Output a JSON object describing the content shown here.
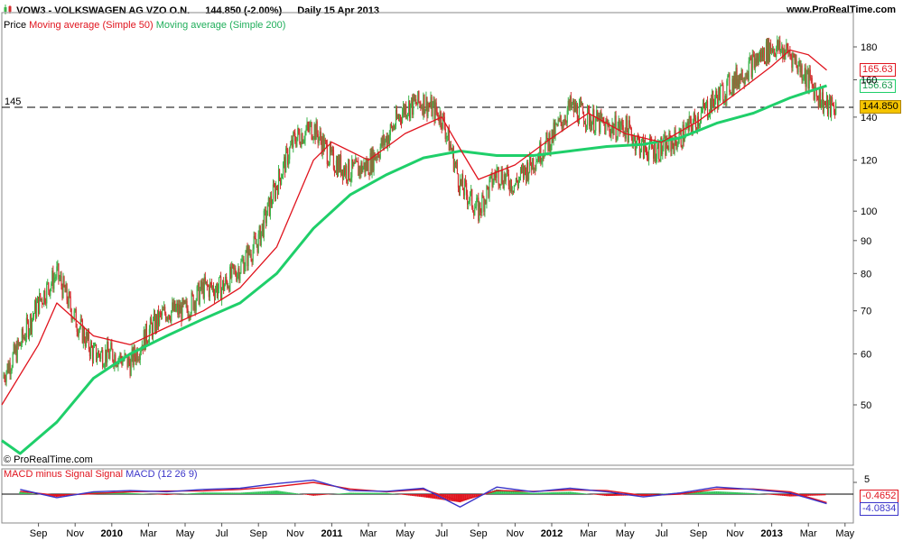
{
  "header": {
    "instrument": "VOW3 - VOLKSWAGEN AG VZO O.N.",
    "price_change": "144.850 (-2.00%)",
    "period": "Daily  15 Apr 2013",
    "website": "www.ProRealTime.com"
  },
  "legend": {
    "price": "Price",
    "ma50": "Moving average (Simple 50)",
    "ma200": "Moving average (Simple 200)"
  },
  "credit": "© ProRealTime.com",
  "macd_legend": {
    "hist": "MACD minus Signal Signal",
    "macd": "MACD (12 26 9)"
  },
  "price_boxes": {
    "ma50": "165.63",
    "ma200": "156.63",
    "last": "144.850"
  },
  "macd_boxes": {
    "five": "5",
    "hist": "-0.4652",
    "macd": "-4.0834"
  },
  "colors": {
    "up_candle": "#3cb44b",
    "down_candle": "#d32f2f",
    "ma50": "#e0141e",
    "ma200": "#1fcf6a",
    "macd_line": "#3b35c9",
    "signal_line": "#e0141e",
    "hist": "#33c35a"
  },
  "chart_data": [
    {
      "type": "line",
      "title": "VOW3 - VOLKSWAGEN AG VZO O.N.",
      "y_scale": "log",
      "ylim": [
        40,
        190
      ],
      "y_ticks": [
        50,
        60,
        70,
        80,
        90,
        100,
        120,
        140,
        160,
        180
      ],
      "x_tick_labels": [
        "Sep",
        "Nov",
        "2010",
        "Mar",
        "May",
        "Jul",
        "Sep",
        "Nov",
        "2011",
        "Mar",
        "May",
        "Jul",
        "Sep",
        "Nov",
        "2012",
        "Mar",
        "May",
        "Jul",
        "Sep",
        "Nov",
        "2013",
        "Mar",
        "May"
      ],
      "reference_line": {
        "label": "145",
        "value": 145,
        "style": "dashed"
      },
      "series": [
        {
          "name": "Price",
          "kind": "candlestick",
          "dates": [
            "2009-07",
            "2009-08",
            "2009-09",
            "2009-10",
            "2009-11",
            "2009-12",
            "2010-01",
            "2010-02",
            "2010-03",
            "2010-04",
            "2010-05",
            "2010-06",
            "2010-07",
            "2010-08",
            "2010-09",
            "2010-10",
            "2010-11",
            "2010-12",
            "2011-01",
            "2011-02",
            "2011-03",
            "2011-04",
            "2011-05",
            "2011-06",
            "2011-07",
            "2011-08",
            "2011-09",
            "2011-10",
            "2011-11",
            "2011-12",
            "2012-01",
            "2012-02",
            "2012-03",
            "2012-04",
            "2012-05",
            "2012-06",
            "2012-07",
            "2012-08",
            "2012-09",
            "2012-10",
            "2012-11",
            "2012-12",
            "2013-01",
            "2013-02",
            "2013-03",
            "2013-04"
          ],
          "values": [
            55,
            62,
            72,
            80,
            68,
            60,
            60,
            58,
            65,
            70,
            70,
            76,
            76,
            82,
            90,
            110,
            130,
            135,
            120,
            115,
            118,
            130,
            145,
            148,
            140,
            110,
            100,
            115,
            110,
            120,
            130,
            145,
            140,
            135,
            135,
            125,
            125,
            130,
            140,
            150,
            160,
            170,
            180,
            176,
            160,
            145
          ]
        },
        {
          "name": "Moving average (Simple 50)",
          "dates": [
            "2009-07",
            "2009-09",
            "2009-10",
            "2009-12",
            "2010-02",
            "2010-04",
            "2010-06",
            "2010-08",
            "2010-10",
            "2010-12",
            "2011-01",
            "2011-03",
            "2011-05",
            "2011-07",
            "2011-08",
            "2011-09",
            "2011-11",
            "2012-01",
            "2012-03",
            "2012-05",
            "2012-07",
            "2012-09",
            "2012-11",
            "2013-01",
            "2013-02",
            "2013-03",
            "2013-04"
          ],
          "values": [
            50,
            62,
            72,
            64,
            62,
            66,
            70,
            76,
            88,
            120,
            128,
            120,
            132,
            140,
            125,
            112,
            118,
            130,
            142,
            132,
            128,
            138,
            152,
            168,
            178,
            175,
            165.63
          ]
        },
        {
          "name": "Moving average (Simple 200)",
          "dates": [
            "2009-07",
            "2009-08",
            "2009-10",
            "2009-12",
            "2010-02",
            "2010-04",
            "2010-06",
            "2010-08",
            "2010-10",
            "2010-12",
            "2011-02",
            "2011-04",
            "2011-06",
            "2011-08",
            "2011-10",
            "2011-12",
            "2012-02",
            "2012-04",
            "2012-06",
            "2012-08",
            "2012-10",
            "2012-12",
            "2013-02",
            "2013-04"
          ],
          "values": [
            44,
            42,
            47,
            55,
            60,
            64,
            68,
            72,
            80,
            94,
            106,
            114,
            121,
            124,
            122,
            122,
            124,
            126,
            127,
            130,
            137,
            142,
            150,
            156.63
          ]
        }
      ]
    },
    {
      "type": "line",
      "title": "MACD (12 26 9)",
      "series": [
        {
          "name": "MACD minus Signal Signal",
          "kind": "histogram",
          "dates": [
            "2009-08",
            "2009-10",
            "2009-12",
            "2010-02",
            "2010-04",
            "2010-06",
            "2010-08",
            "2010-10",
            "2010-12",
            "2011-02",
            "2011-04",
            "2011-06",
            "2011-08",
            "2011-10",
            "2011-12",
            "2012-02",
            "2012-04",
            "2012-06",
            "2012-08",
            "2012-10",
            "2012-12",
            "2013-02",
            "2013-04"
          ],
          "values": [
            1.0,
            -1.2,
            0.9,
            0.5,
            -0.4,
            0.7,
            0.6,
            1.5,
            -0.7,
            0.6,
            0.5,
            -1.3,
            -3.5,
            2.0,
            0.5,
            1.0,
            -0.8,
            -0.5,
            0.7,
            1.2,
            0.4,
            -1.0,
            -0.4652
          ]
        },
        {
          "name": "MACD (12 26 9)",
          "dates": [
            "2009-08",
            "2009-10",
            "2009-12",
            "2010-02",
            "2010-04",
            "2010-06",
            "2010-08",
            "2010-10",
            "2010-12",
            "2011-02",
            "2011-04",
            "2011-06",
            "2011-08",
            "2011-10",
            "2011-12",
            "2012-02",
            "2012-04",
            "2012-06",
            "2012-08",
            "2012-10",
            "2012-12",
            "2013-02",
            "2013-04"
          ],
          "values": [
            2.0,
            -1.5,
            1.0,
            1.5,
            1.0,
            2.0,
            2.5,
            4.5,
            6.0,
            1.5,
            1.2,
            2.5,
            -5.5,
            3.0,
            1.0,
            2.5,
            1.0,
            -1.2,
            0.5,
            3.0,
            2.0,
            0.5,
            -4.0834
          ]
        },
        {
          "name": "Signal",
          "dates": [
            "2009-08",
            "2009-10",
            "2009-12",
            "2010-02",
            "2010-04",
            "2010-06",
            "2010-08",
            "2010-10",
            "2010-12",
            "2011-02",
            "2011-04",
            "2011-06",
            "2011-08",
            "2011-10",
            "2011-12",
            "2012-02",
            "2012-04",
            "2012-06",
            "2012-08",
            "2012-10",
            "2012-12",
            "2013-02",
            "2013-04"
          ],
          "values": [
            1.2,
            -0.5,
            0.2,
            1.0,
            1.3,
            1.4,
            2.0,
            3.2,
            5.0,
            2.2,
            1.0,
            2.0,
            -3.0,
            1.5,
            1.2,
            1.8,
            1.5,
            -0.6,
            0.0,
            2.2,
            2.2,
            1.0,
            -3.6
          ]
        }
      ],
      "y_ticks": [
        5
      ]
    }
  ]
}
